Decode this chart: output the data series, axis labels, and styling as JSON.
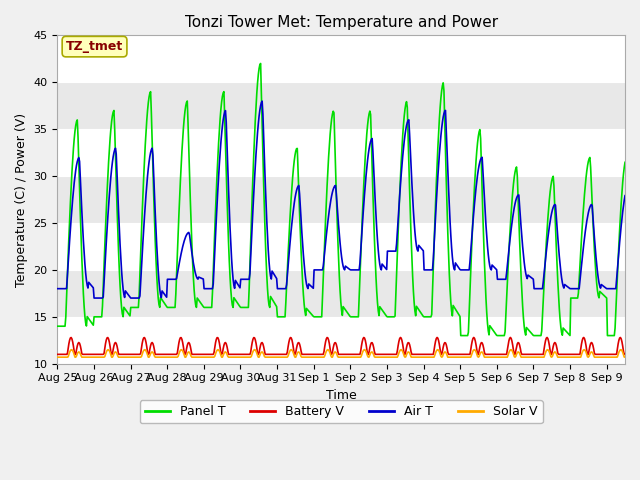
{
  "title": "Tonzi Tower Met: Temperature and Power",
  "xlabel": "Time",
  "ylabel": "Temperature (C) / Power (V)",
  "ylim": [
    10,
    45
  ],
  "n_days": 15.5,
  "tick_labels": [
    "Aug 25",
    "Aug 26",
    "Aug 27",
    "Aug 28",
    "Aug 29",
    "Aug 30",
    "Aug 31",
    "Sep 1",
    "Sep 2",
    "Sep 3",
    "Sep 4",
    "Sep 5",
    "Sep 6",
    "Sep 7",
    "Sep 8",
    "Sep 9"
  ],
  "plot_bg_color": "#f0f0f0",
  "fig_bg_color": "#f0f0f0",
  "band_colors": [
    "#e8e8e8",
    "#f8f8f8"
  ],
  "legend_labels": [
    "Panel T",
    "Battery V",
    "Air T",
    "Solar V"
  ],
  "line_colors": [
    "#00dd00",
    "#dd0000",
    "#0000cc",
    "#ffaa00"
  ],
  "annotation_text": "TZ_tmet",
  "annotation_color": "#880000",
  "annotation_bg": "#ffffbb",
  "annotation_edge": "#aaaa00",
  "title_fontsize": 11,
  "axis_label_fontsize": 9,
  "tick_fontsize": 8,
  "legend_fontsize": 9,
  "panel_peaks": [
    36,
    37,
    39,
    38,
    39,
    42,
    33,
    37,
    37,
    38,
    40,
    35,
    31,
    30,
    32,
    32
  ],
  "panel_troughs": [
    14,
    15,
    16,
    16,
    16,
    16,
    15,
    15,
    15,
    15,
    15,
    13,
    13,
    13,
    17,
    13
  ],
  "air_peaks": [
    32,
    33,
    33,
    24,
    37,
    38,
    29,
    29,
    34,
    36,
    37,
    32,
    28,
    27,
    27,
    29
  ],
  "air_troughs": [
    18,
    17,
    17,
    19,
    18,
    19,
    18,
    20,
    20,
    22,
    20,
    20,
    19,
    18,
    18,
    18
  ],
  "battery_base": 11.0,
  "battery_peak": 12.8,
  "solar_base": 10.7,
  "solar_peak": 11.5
}
